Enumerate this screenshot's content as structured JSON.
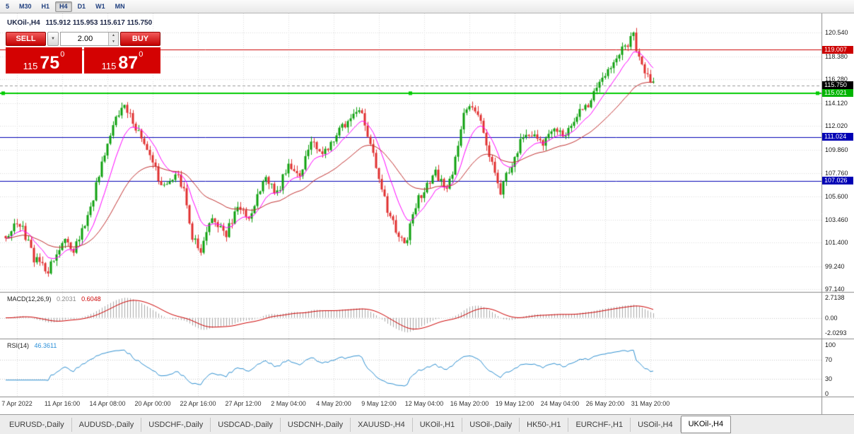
{
  "toolbar": {
    "periods": [
      "5",
      "M30",
      "H1",
      "H4",
      "D1",
      "W1",
      "MN"
    ],
    "active_period": "H4"
  },
  "chart": {
    "title": "UKOil-,H4",
    "ohlc": "115.912 115.953 115.617 115.750",
    "trade_panel": {
      "sell_label": "SELL",
      "buy_label": "BUY",
      "volume": "2.00",
      "sell_price": {
        "prefix": "115",
        "big": "75",
        "sup": "0"
      },
      "buy_price": {
        "prefix": "115",
        "big": "87",
        "sup": "0"
      }
    }
  },
  "icons": {
    "caret_down": "▼",
    "spin_up": "▲",
    "spin_down": "▼"
  },
  "chart_data": {
    "type": "candlestick",
    "symbol": "UKOil-",
    "timeframe": "H4",
    "ohlc_current": {
      "open": 115.912,
      "high": 115.953,
      "low": 115.617,
      "close": 115.75
    },
    "main_range": [
      96.9,
      122.3
    ],
    "y_ticks": [
      120.54,
      118.38,
      116.28,
      114.12,
      112.02,
      109.86,
      107.76,
      105.6,
      103.46,
      101.4,
      99.24,
      97.14
    ],
    "candle_count": 230,
    "price_path": [
      [
        0,
        102.0
      ],
      [
        5,
        103.2
      ],
      [
        10,
        100.0
      ],
      [
        15,
        98.9
      ],
      [
        20,
        101.5
      ],
      [
        24,
        100.8
      ],
      [
        28,
        103.0
      ],
      [
        32,
        106.5
      ],
      [
        36,
        110.5
      ],
      [
        39,
        112.8
      ],
      [
        42,
        113.6
      ],
      [
        46,
        112.0
      ],
      [
        52,
        108.5
      ],
      [
        56,
        106.3
      ],
      [
        60,
        107.8
      ],
      [
        63,
        106.0
      ],
      [
        66,
        102.0
      ],
      [
        69,
        100.6
      ],
      [
        73,
        103.6
      ],
      [
        78,
        102.2
      ],
      [
        82,
        104.5
      ],
      [
        86,
        103.8
      ],
      [
        92,
        107.3
      ],
      [
        96,
        105.8
      ],
      [
        100,
        108.8
      ],
      [
        104,
        107.5
      ],
      [
        108,
        110.8
      ],
      [
        112,
        109.3
      ],
      [
        116,
        111.0
      ],
      [
        120,
        112.2
      ],
      [
        125,
        113.7
      ],
      [
        128,
        111.0
      ],
      [
        132,
        107.5
      ],
      [
        136,
        103.5
      ],
      [
        140,
        101.6
      ],
      [
        142,
        101.3
      ],
      [
        144,
        104.3
      ],
      [
        148,
        106.3
      ],
      [
        152,
        108.0
      ],
      [
        155,
        106.2
      ],
      [
        158,
        107.5
      ],
      [
        162,
        113.0
      ],
      [
        165,
        114.0
      ],
      [
        168,
        112.5
      ],
      [
        171,
        109.5
      ],
      [
        175,
        106.2
      ],
      [
        178,
        108.0
      ],
      [
        182,
        110.5
      ],
      [
        186,
        111.3
      ],
      [
        190,
        110.2
      ],
      [
        194,
        112.0
      ],
      [
        198,
        111.2
      ],
      [
        202,
        113.0
      ],
      [
        206,
        114.0
      ],
      [
        210,
        115.8
      ],
      [
        213,
        117.2
      ],
      [
        216,
        118.4
      ],
      [
        219,
        119.2
      ],
      [
        222,
        120.2
      ],
      [
        224,
        118.3
      ],
      [
        226,
        117.2
      ],
      [
        229,
        115.8
      ]
    ],
    "levels": [
      {
        "price": 119.007,
        "color": "#cc0000",
        "width": 1,
        "style": "solid"
      },
      {
        "price": 115.75,
        "color": "#999999",
        "width": 1,
        "style": "dashed"
      },
      {
        "price": 115.021,
        "color": "#00cc00",
        "width": 2,
        "style": "solid",
        "handles": true
      },
      {
        "price": 111.024,
        "color": "#0000b4",
        "width": 1,
        "style": "solid"
      },
      {
        "price": 107.026,
        "color": "#0000b4",
        "width": 1,
        "style": "solid"
      }
    ],
    "badges": [
      {
        "label": "119.007",
        "price": 119.007,
        "bg": "#cc0000"
      },
      {
        "label": "115.750",
        "price": 115.75,
        "bg": "#000000"
      },
      {
        "label": "115.021",
        "price": 115.021,
        "bg": "#00b400"
      },
      {
        "label": "111.024",
        "price": 111.024,
        "bg": "#0000b4"
      },
      {
        "label": "107.026",
        "price": 107.026,
        "bg": "#0000b4"
      }
    ],
    "moving_averages": [
      {
        "period": 10,
        "color": "#ff00ff"
      },
      {
        "period": 34,
        "color": "#c03030"
      }
    ],
    "macd": {
      "label": "MACD(12,26,9)",
      "value_main": "0.2031",
      "value_signal": "0.6048",
      "range": [
        -2.8,
        3.4
      ],
      "ticks": [
        {
          "label": "2.7138",
          "v": 2.7138
        },
        {
          "label": "0.00",
          "v": 0
        },
        {
          "label": "-2.0293",
          "v": -2.0293
        }
      ],
      "hist_color": "#a9a9a9",
      "signal_color": "#cc0000"
    },
    "rsi": {
      "label": "RSI(14)",
      "value": "46.3611",
      "color": "#2e8fd0",
      "ticks": [
        100,
        70,
        30,
        0
      ],
      "levels": [
        70,
        30
      ]
    },
    "x_labels": [
      "7 Apr 2022",
      "11 Apr 16:00",
      "14 Apr 08:00",
      "20 Apr 00:00",
      "22 Apr 16:00",
      "27 Apr 12:00",
      "2 May 04:00",
      "4 May 20:00",
      "9 May 12:00",
      "12 May 04:00",
      "16 May 20:00",
      "19 May 12:00",
      "24 May 04:00",
      "26 May 20:00",
      "31 May 20:00"
    ],
    "x_first_index": 4,
    "x_step": 16,
    "colors": {
      "up": "#0fa00f",
      "down": "#e03030",
      "grid": "#d9d9d9",
      "border": "#8a8a8a"
    }
  },
  "tabs": {
    "items": [
      "EURUSD-,Daily",
      "AUDUSD-,Daily",
      "USDCHF-,Daily",
      "USDCAD-,Daily",
      "USDCNH-,Daily",
      "XAUUSD-,H4",
      "UKOil-,H1",
      "USOil-,Daily",
      "HK50-,H1",
      "EURCHF-,H1",
      "USOil-,H4",
      "UKOil-,H4"
    ],
    "active": "UKOil-,H4"
  }
}
